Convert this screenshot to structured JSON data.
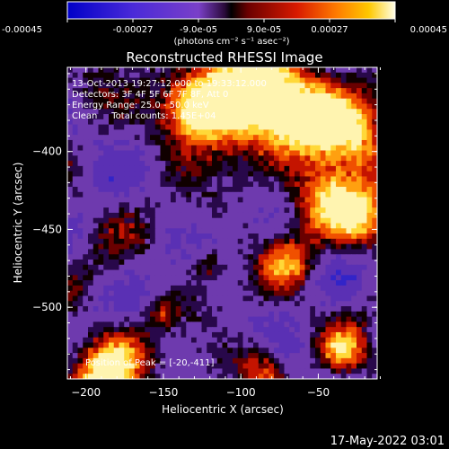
{
  "chart_data": {
    "type": "heatmap",
    "title": "Reconstructed RHESSI Image",
    "xlabel": "Heliocentric X (arcsec)",
    "ylabel": "Heliocentric Y (arcsec)",
    "xlim": [
      -212,
      -12
    ],
    "ylim": [
      -546,
      -346
    ],
    "x_ticks": [
      -200,
      -150,
      -100,
      -50
    ],
    "y_ticks": [
      -500,
      -450,
      -400
    ],
    "colorbar": {
      "range": [
        -0.00045,
        0.00045
      ],
      "tick_labels": [
        "-0.00045",
        "-0.00027",
        "-9.0e-05",
        "9.0e-05",
        "0.00027",
        "0.00045"
      ],
      "units_label": "(photons cm⁻² s⁻¹ asec⁻²)",
      "colors": [
        "#0000c8",
        "#3a1fd8",
        "#7a3fc8",
        "#3a1070",
        "#000000",
        "#7a0000",
        "#d81a00",
        "#ff7a00",
        "#ffc800",
        "#ffffe0"
      ]
    },
    "annotations": [
      "13-Oct-2013 19:27:12.000 to 19:33:12.000",
      "Detectors: 3F 4F 5F 6F 7F 8F, Att 0",
      "Energy Range: 25.0 - 50.0 keV",
      "Clean     Total counts: 1.45E+04",
      "Position of Peak = [-20,-411]"
    ],
    "peak": {
      "x": -20,
      "y": -411
    }
  },
  "footer": {
    "date": "17-May-2022 03:01"
  }
}
